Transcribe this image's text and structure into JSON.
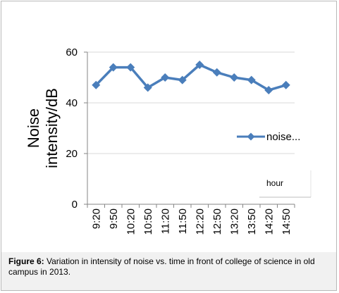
{
  "chart_data": {
    "type": "line",
    "title": "",
    "xlabel": "",
    "ylabel": "Noise intensity/dB",
    "ylabel_lines": [
      "Noise",
      "intensity/dB"
    ],
    "ylim": [
      0,
      60
    ],
    "yticks": [
      0,
      20,
      40,
      60
    ],
    "grid": "horizontal",
    "categories": [
      "9:20",
      "9:50",
      "10:20",
      "10:50",
      "11:20",
      "11:50",
      "12:20",
      "12:50",
      "13:20",
      "13:50",
      "14:20",
      "14:50"
    ],
    "series": [
      {
        "name": "noise...",
        "color": "#4a7ebb",
        "marker": "diamond",
        "values": [
          47,
          54,
          54,
          46,
          50,
          49,
          55,
          52,
          50,
          49,
          45,
          47
        ]
      }
    ],
    "legend": {
      "position": "right",
      "label": "noise..."
    },
    "annotations": [
      {
        "text": "hour"
      }
    ]
  },
  "caption": {
    "label": "Figure 6:",
    "text": " Variation in intensity of noise vs. time in front of college of science in old campus in 2013."
  }
}
